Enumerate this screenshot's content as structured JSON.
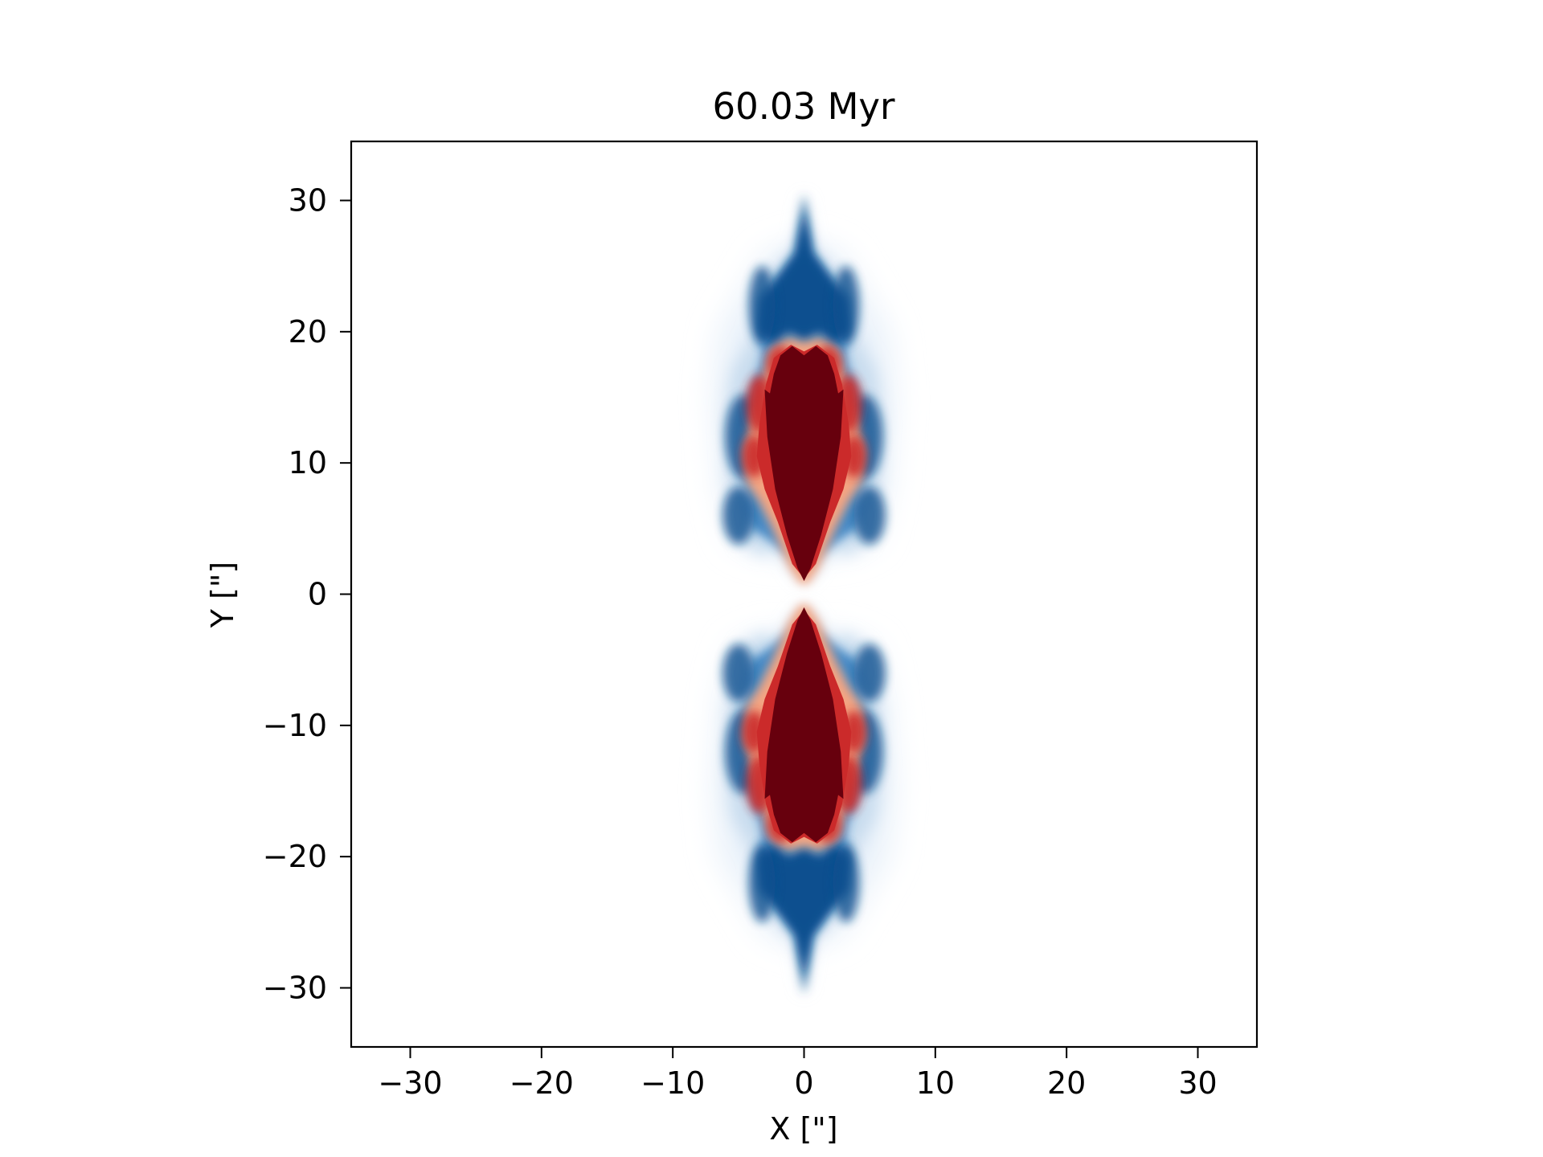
{
  "chart_data": {
    "type": "heatmap",
    "title": "60.03 Myr",
    "xlabel": "X [\"]",
    "ylabel": "Y [\"]",
    "xlim": [
      -34.5,
      34.5
    ],
    "ylim": [
      -34.5,
      34.5
    ],
    "xticks": [
      -30,
      -20,
      -10,
      0,
      10,
      20,
      30
    ],
    "xtick_labels": [
      "−30",
      "−20",
      "−10",
      "0",
      "10",
      "20",
      "30"
    ],
    "yticks": [
      30,
      20,
      10,
      0,
      -10,
      -20,
      -30
    ],
    "ytick_labels": [
      "30",
      "20",
      "10",
      "0",
      "−10",
      "−20",
      "−30"
    ],
    "grid": false,
    "legend": "none",
    "colormap": "RdBu_r",
    "colors": {
      "dark_red": "#67000d",
      "red": "#cb2a2a",
      "light_red": "#f4a582",
      "dark_blue": "#0a4f8f",
      "blue": "#2f7bbf",
      "light_blue": "#c8dcee",
      "pale_blue": "#eaf2fa"
    },
    "features": [
      {
        "name": "jet core north",
        "x_range": [
          -2.5,
          2.5
        ],
        "y_range": [
          0.5,
          19
        ]
      },
      {
        "name": "jet core south",
        "x_range": [
          -2.5,
          2.5
        ],
        "y_range": [
          -19,
          -0.5
        ]
      },
      {
        "name": "cocoon north",
        "x_range": [
          -6.5,
          6.5
        ],
        "y_range": [
          3,
          30.5
        ]
      },
      {
        "name": "cocoon south",
        "x_range": [
          -6.5,
          6.5
        ],
        "y_range": [
          -30.5,
          -3
        ]
      }
    ]
  }
}
